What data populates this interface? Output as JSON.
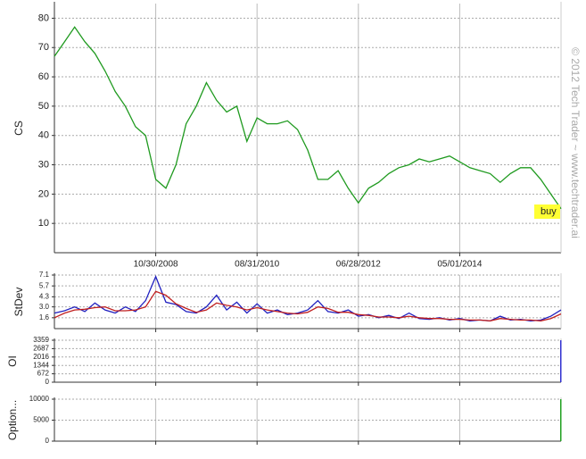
{
  "watermark": "© 2012 Tech Trader ~ www.techtrader.ai",
  "chart_data": [
    {
      "type": "line",
      "y_label": "CS",
      "annotation": "buy",
      "categories": [
        null,
        null,
        null,
        null,
        null,
        null,
        null,
        null,
        null,
        null,
        "10/30/2008",
        null,
        null,
        null,
        null,
        null,
        null,
        null,
        null,
        null,
        "08/31/2010",
        null,
        null,
        null,
        null,
        null,
        null,
        null,
        null,
        null,
        "06/28/2012",
        null,
        null,
        null,
        null,
        null,
        null,
        null,
        null,
        null,
        "05/01/2014",
        null,
        null,
        null,
        null,
        null,
        null,
        null,
        null,
        null,
        null
      ],
      "series": [
        {
          "color": "#1f9a1f",
          "values": [
            67,
            72,
            77,
            72,
            68,
            62,
            55,
            50,
            43,
            40,
            25,
            22,
            30,
            44,
            50,
            58,
            52,
            48,
            50,
            38,
            46,
            44,
            44,
            45,
            42,
            35,
            25,
            25,
            28,
            22,
            17,
            22,
            24,
            27,
            29,
            30,
            32,
            31,
            32,
            33,
            31,
            29,
            28,
            27,
            24,
            27,
            29,
            29,
            25,
            20,
            15
          ]
        }
      ],
      "ylim": [
        0,
        85
      ],
      "yticks": [
        10,
        20,
        30,
        40,
        50,
        60,
        70,
        80
      ],
      "grid": true
    },
    {
      "type": "line",
      "y_label": "StDev",
      "series": [
        {
          "color": "#2020c0",
          "values": [
            2.2,
            2.5,
            3.0,
            2.4,
            3.5,
            2.6,
            2.2,
            3.0,
            2.4,
            3.8,
            6.9,
            3.6,
            3.3,
            2.4,
            2.2,
            3.0,
            4.5,
            2.6,
            3.6,
            2.2,
            3.4,
            2.2,
            2.6,
            2.0,
            2.2,
            2.6,
            3.8,
            2.4,
            2.2,
            2.6,
            1.8,
            2.0,
            1.6,
            1.9,
            1.5,
            2.2,
            1.5,
            1.4,
            1.6,
            1.3,
            1.5,
            1.2,
            1.3,
            1.2,
            1.8,
            1.3,
            1.4,
            1.2,
            1.3,
            1.8,
            2.6
          ]
        },
        {
          "color": "#c02020",
          "values": [
            1.6,
            2.2,
            2.6,
            2.7,
            2.9,
            3.0,
            2.5,
            2.5,
            2.6,
            3.0,
            5.0,
            4.5,
            3.4,
            2.8,
            2.3,
            2.6,
            3.5,
            3.2,
            3.0,
            2.6,
            2.9,
            2.6,
            2.4,
            2.2,
            2.1,
            2.3,
            3.0,
            2.8,
            2.3,
            2.3,
            2.0,
            1.9,
            1.7,
            1.7,
            1.6,
            1.8,
            1.6,
            1.5,
            1.5,
            1.4,
            1.4,
            1.3,
            1.3,
            1.2,
            1.5,
            1.4,
            1.3,
            1.3,
            1.2,
            1.5,
            2.1
          ]
        }
      ],
      "ylim": [
        0.2,
        7.1
      ],
      "yticks": [
        1.6,
        {
          "value": 3,
          "label": "3.0"
        },
        4.3,
        5.7,
        7.1
      ],
      "grid": true
    },
    {
      "type": "bar",
      "y_label": "OI",
      "series": [
        {
          "color": "#3030d0",
          "values": [
            0,
            0,
            0,
            0,
            0,
            0,
            0,
            0,
            0,
            0,
            0,
            0,
            0,
            0,
            0,
            0,
            0,
            0,
            0,
            0,
            0,
            0,
            0,
            0,
            0,
            0,
            0,
            0,
            0,
            0,
            0,
            0,
            0,
            0,
            0,
            0,
            0,
            0,
            0,
            0,
            0,
            0,
            0,
            0,
            0,
            0,
            0,
            0,
            0,
            0,
            3359
          ]
        }
      ],
      "ylim": [
        0,
        3359
      ],
      "yticks": [
        0,
        672,
        1344,
        2016,
        2687,
        3359
      ],
      "grid": true
    },
    {
      "type": "bar",
      "y_label": "Option...",
      "series": [
        {
          "color": "#20a020",
          "values": [
            0,
            0,
            0,
            0,
            0,
            0,
            0,
            0,
            0,
            0,
            0,
            0,
            0,
            0,
            0,
            0,
            0,
            0,
            0,
            0,
            0,
            0,
            0,
            0,
            0,
            0,
            0,
            0,
            0,
            0,
            0,
            0,
            0,
            0,
            0,
            0,
            0,
            0,
            0,
            0,
            0,
            0,
            0,
            0,
            0,
            0,
            0,
            0,
            0,
            0,
            10000
          ]
        }
      ],
      "ylim": [
        0,
        10000
      ],
      "yticks": [
        0,
        5000,
        10000
      ],
      "grid": true
    }
  ]
}
